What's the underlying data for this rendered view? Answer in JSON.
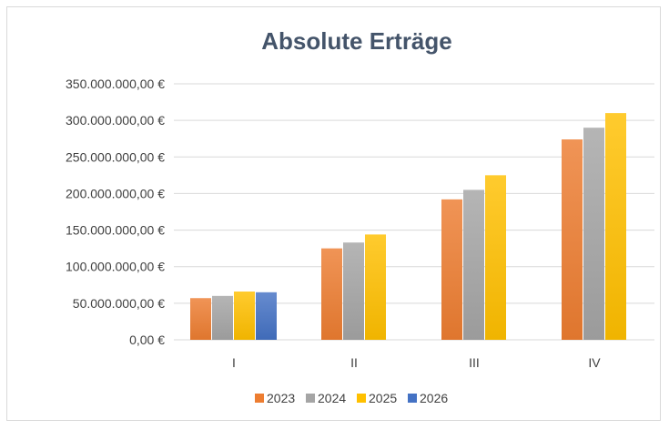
{
  "chart_data": {
    "type": "bar",
    "title": "Absolute Erträge",
    "xlabel": "",
    "ylabel": "",
    "categories": [
      "I",
      "II",
      "III",
      "IV"
    ],
    "ylim": [
      0,
      350000000
    ],
    "y_ticks": [
      {
        "value": 0,
        "label": "0,00 €"
      },
      {
        "value": 50000000,
        "label": "50.000.000,00 €"
      },
      {
        "value": 100000000,
        "label": "100.000.000,00 €"
      },
      {
        "value": 150000000,
        "label": "150.000.000,00 €"
      },
      {
        "value": 200000000,
        "label": "200.000.000,00 €"
      },
      {
        "value": 250000000,
        "label": "250.000.000,00 €"
      },
      {
        "value": 300000000,
        "label": "300.000.000,00 €"
      },
      {
        "value": 350000000,
        "label": "350.000.000,00 €"
      }
    ],
    "series": [
      {
        "name": "2023",
        "color": "#ed7d31",
        "values": [
          57000000,
          125000000,
          192000000,
          274000000
        ]
      },
      {
        "name": "2024",
        "color": "#a5a5a5",
        "values": [
          60000000,
          133000000,
          205000000,
          290000000
        ]
      },
      {
        "name": "2025",
        "color": "#ffc000",
        "values": [
          66000000,
          144000000,
          225000000,
          310000000
        ]
      },
      {
        "name": "2026",
        "color": "#4472c4",
        "values": [
          65000000,
          null,
          null,
          null
        ]
      }
    ],
    "grid": true,
    "legend_position": "bottom"
  }
}
